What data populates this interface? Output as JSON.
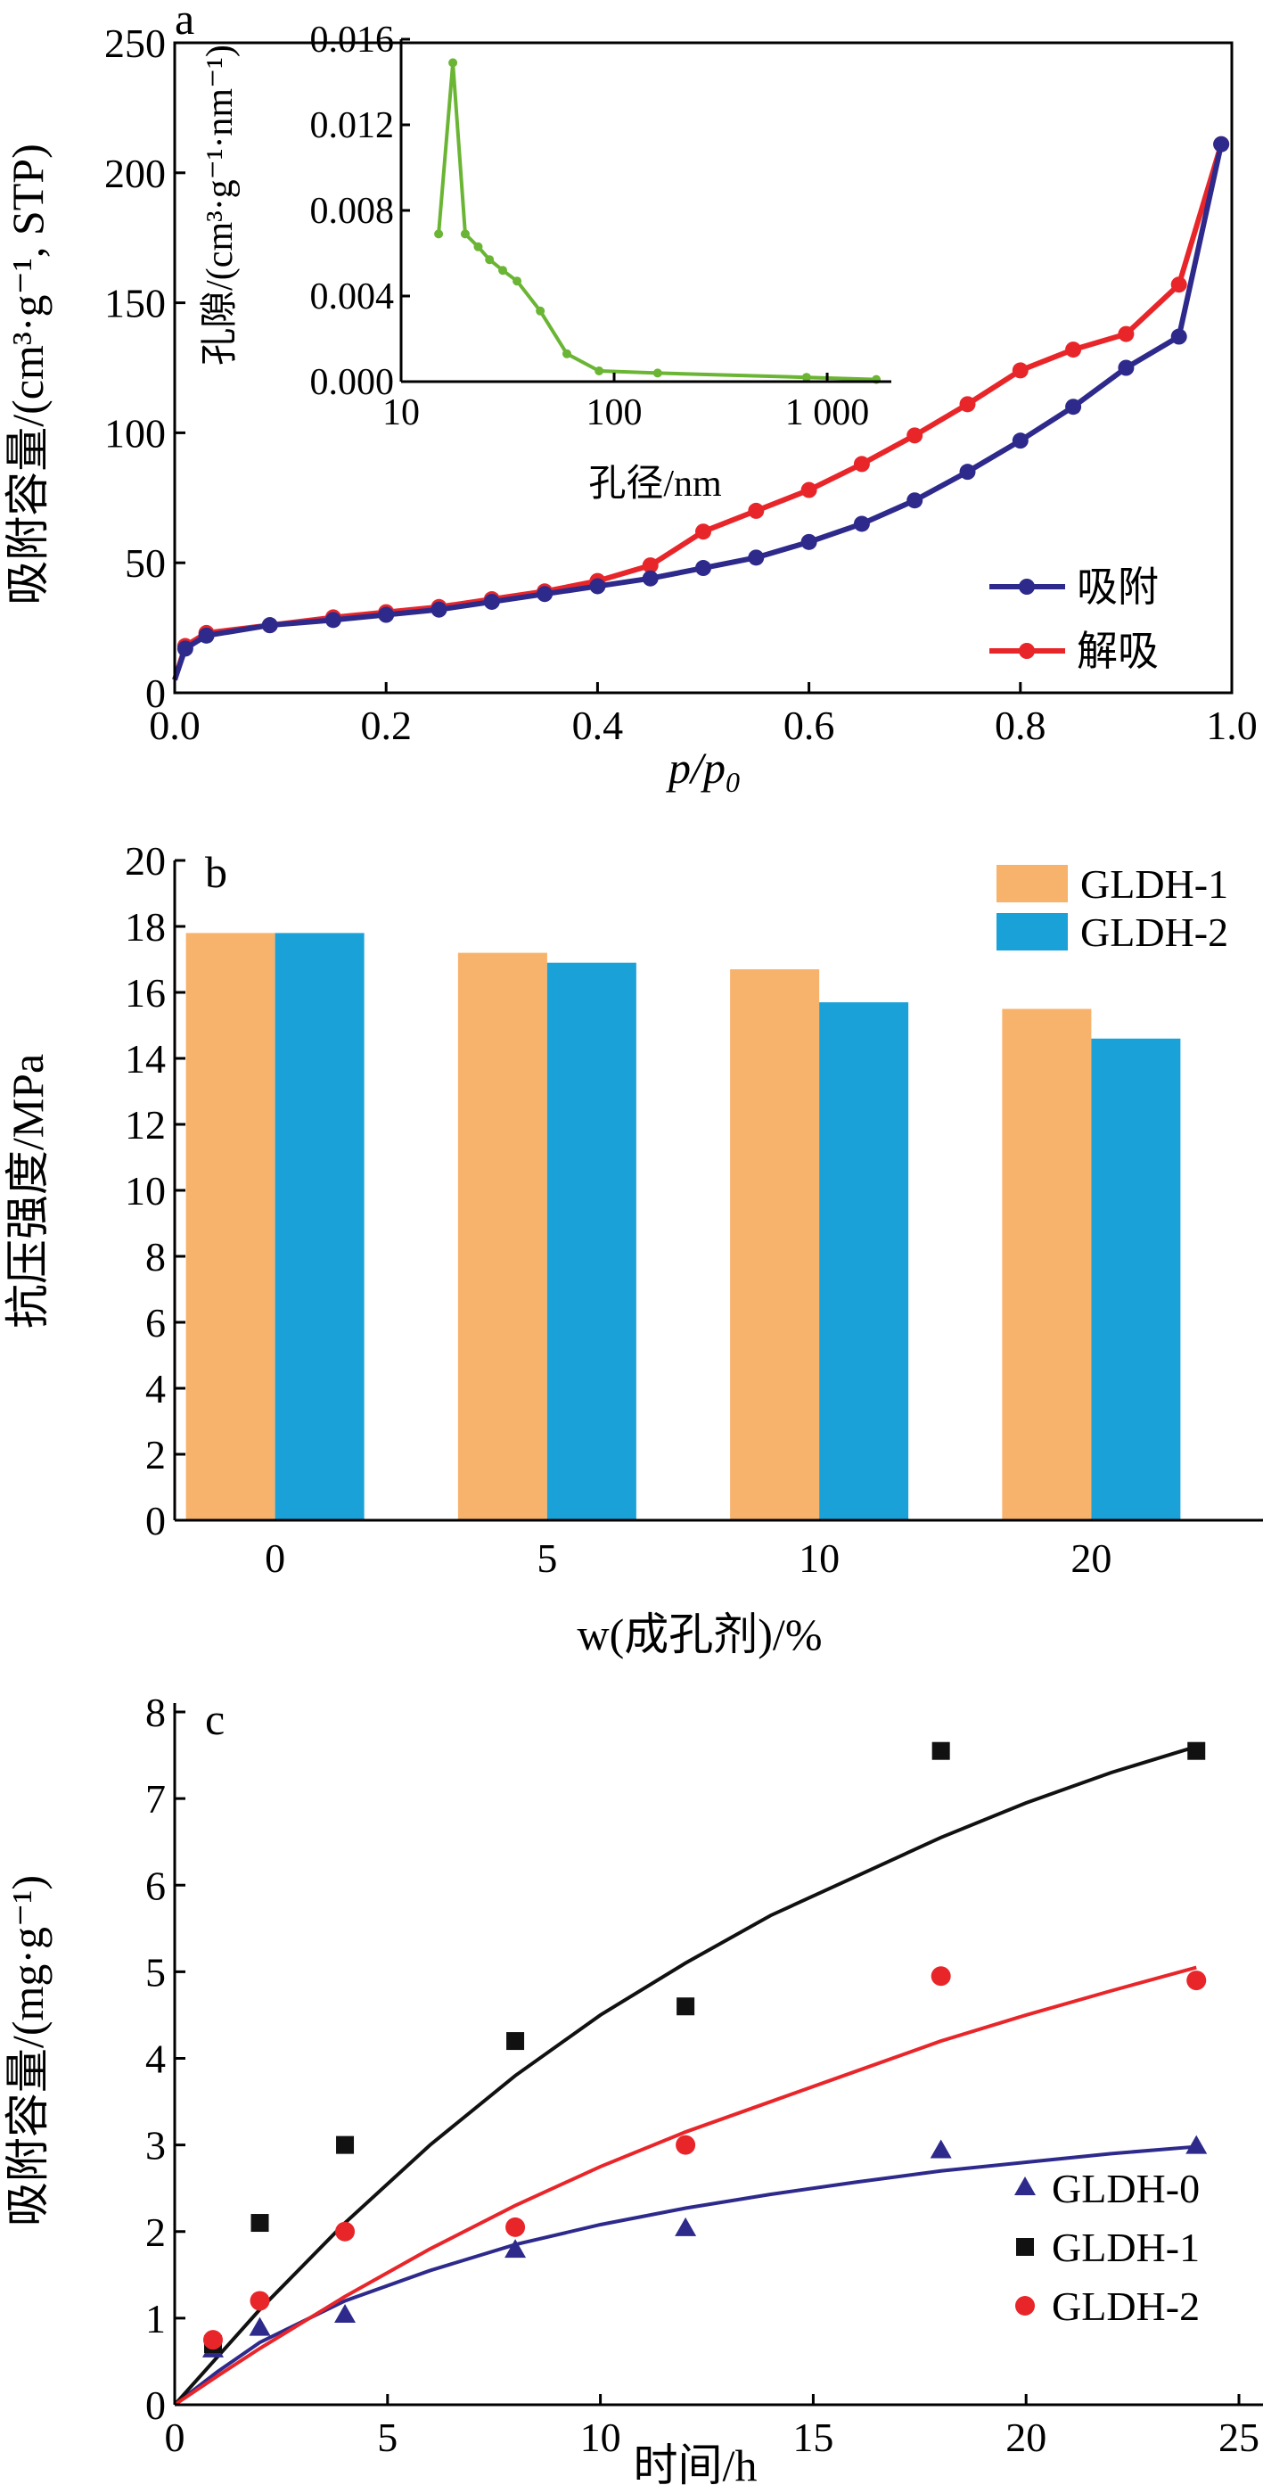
{
  "chart_data": [
    {
      "panel": "a",
      "type": "line",
      "xlabel": "p/p",
      "xlabel_sub": "0",
      "ylabel": "吸附容量/(cm³·g⁻¹, STP)",
      "xlim": [
        0.0,
        1.0
      ],
      "ylim": [
        0,
        250
      ],
      "xticks": [
        "0.0",
        "0.2",
        "0.4",
        "0.6",
        "0.8",
        "1.0"
      ],
      "yticks": [
        "0",
        "50",
        "100",
        "150",
        "200",
        "250"
      ],
      "legend_position": "bottom-right",
      "series": [
        {
          "name": "吸附",
          "color": "#2e2a8c",
          "x": [
            0.0,
            0.01,
            0.03,
            0.09,
            0.15,
            0.2,
            0.25,
            0.3,
            0.35,
            0.4,
            0.45,
            0.5,
            0.55,
            0.6,
            0.65,
            0.7,
            0.75,
            0.8,
            0.85,
            0.9,
            0.95,
            0.99
          ],
          "y": [
            5,
            17,
            22,
            26,
            28,
            30,
            32,
            35,
            38,
            41,
            44,
            48,
            52,
            58,
            65,
            74,
            85,
            97,
            110,
            125,
            137,
            211
          ]
        },
        {
          "name": "解吸",
          "color": "#e8262a",
          "x": [
            0.0,
            0.01,
            0.03,
            0.09,
            0.15,
            0.2,
            0.25,
            0.3,
            0.35,
            0.4,
            0.45,
            0.5,
            0.55,
            0.6,
            0.65,
            0.7,
            0.75,
            0.8,
            0.85,
            0.9,
            0.95,
            0.99
          ],
          "y": [
            5,
            18,
            23,
            26,
            29,
            31,
            33,
            36,
            39,
            43,
            49,
            62,
            70,
            78,
            88,
            99,
            111,
            124,
            132,
            138,
            157,
            211
          ]
        }
      ],
      "inset": {
        "type": "line",
        "xlabel": "孔径/nm",
        "ylabel": "孔隙/(cm³·g⁻¹·nm⁻¹)",
        "xscale": "log",
        "xlim": [
          10,
          2000
        ],
        "ylim": [
          0,
          0.016
        ],
        "xticks": [
          "10",
          "100",
          "1 000"
        ],
        "yticks": [
          "0.000",
          "0.004",
          "0.008",
          "0.012",
          "0.016"
        ],
        "color": "#6ab533",
        "x": [
          15,
          17.5,
          20,
          23,
          26,
          30,
          35,
          45,
          60,
          85,
          160,
          800,
          1700
        ],
        "y": [
          0.0069,
          0.0149,
          0.0069,
          0.0063,
          0.0057,
          0.0052,
          0.0047,
          0.0033,
          0.0013,
          0.0005,
          0.0004,
          0.0002,
          0.0001
        ]
      }
    },
    {
      "panel": "b",
      "type": "bar",
      "xlabel": "w(成孔剂)/%",
      "ylabel": "抗压强度/MPa",
      "categories": [
        "0",
        "5",
        "10",
        "20"
      ],
      "ylim": [
        0,
        20
      ],
      "yticks": [
        "0",
        "2",
        "4",
        "6",
        "8",
        "10",
        "12",
        "14",
        "16",
        "18",
        "20"
      ],
      "legend_position": "top-right",
      "series": [
        {
          "name": "GLDH-1",
          "color": "#f7b26b",
          "values": [
            17.8,
            17.2,
            16.7,
            15.5
          ]
        },
        {
          "name": "GLDH-2",
          "color": "#1aa2d8",
          "values": [
            17.8,
            16.9,
            15.7,
            14.6
          ]
        }
      ]
    },
    {
      "panel": "c",
      "type": "scatter",
      "xlabel": "时间/h",
      "ylabel": "吸附容量/(mg·g⁻¹)",
      "xlim": [
        0,
        25
      ],
      "ylim": [
        0,
        8
      ],
      "xticks": [
        "0",
        "5",
        "10",
        "15",
        "20",
        "25"
      ],
      "yticks": [
        "0",
        "1",
        "2",
        "3",
        "4",
        "5",
        "6",
        "7",
        "8"
      ],
      "legend_position": "bottom-right",
      "series": [
        {
          "name": "GLDH-0",
          "marker": "triangle",
          "color": "#2e2a8c",
          "x": [
            0.9,
            2,
            4,
            8,
            12,
            18,
            24
          ],
          "y": [
            0.65,
            0.9,
            1.05,
            1.8,
            2.05,
            2.95,
            3.0
          ],
          "fit": [
            [
              0,
              0
            ],
            [
              1,
              0.38
            ],
            [
              2,
              0.72
            ],
            [
              4,
              1.2
            ],
            [
              6,
              1.55
            ],
            [
              8,
              1.85
            ],
            [
              10,
              2.08
            ],
            [
              12,
              2.27
            ],
            [
              14,
              2.43
            ],
            [
              16,
              2.57
            ],
            [
              18,
              2.7
            ],
            [
              20,
              2.8
            ],
            [
              22,
              2.9
            ],
            [
              24,
              2.98
            ]
          ]
        },
        {
          "name": "GLDH-1",
          "marker": "square",
          "color": "#111111",
          "x": [
            0.9,
            2,
            4,
            8,
            12,
            18,
            24
          ],
          "y": [
            0.7,
            2.1,
            3.0,
            4.2,
            4.6,
            7.55,
            7.55
          ],
          "fit": [
            [
              0,
              0
            ],
            [
              1,
              0.55
            ],
            [
              2,
              1.1
            ],
            [
              4,
              2.1
            ],
            [
              6,
              3.0
            ],
            [
              8,
              3.8
            ],
            [
              10,
              4.5
            ],
            [
              12,
              5.1
            ],
            [
              14,
              5.65
            ],
            [
              16,
              6.1
            ],
            [
              18,
              6.55
            ],
            [
              20,
              6.95
            ],
            [
              22,
              7.3
            ],
            [
              24,
              7.6
            ]
          ]
        },
        {
          "name": "GLDH-2",
          "marker": "circle",
          "color": "#e8262a",
          "x": [
            0.9,
            2,
            4,
            8,
            12,
            18,
            24
          ],
          "y": [
            0.75,
            1.2,
            2.0,
            2.05,
            3.0,
            4.95,
            4.9
          ],
          "fit": [
            [
              0,
              0
            ],
            [
              1,
              0.33
            ],
            [
              2,
              0.65
            ],
            [
              4,
              1.25
            ],
            [
              6,
              1.8
            ],
            [
              8,
              2.3
            ],
            [
              10,
              2.75
            ],
            [
              12,
              3.15
            ],
            [
              14,
              3.5
            ],
            [
              16,
              3.85
            ],
            [
              18,
              4.2
            ],
            [
              20,
              4.5
            ],
            [
              22,
              4.78
            ],
            [
              24,
              5.05
            ]
          ]
        }
      ]
    }
  ]
}
